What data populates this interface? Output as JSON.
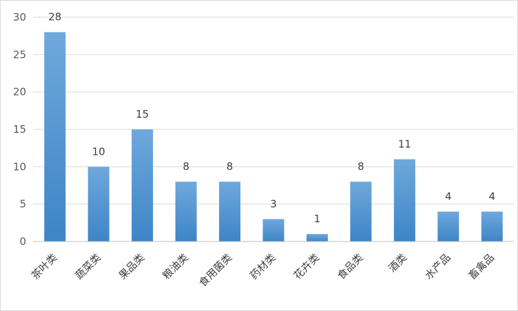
{
  "chart_data": {
    "type": "bar",
    "categories": [
      "茶叶类",
      "蔬菜类",
      "果品类",
      "粮油类",
      "食用菌类",
      "药材类",
      "花卉类",
      "食品类",
      "酒类",
      "水产品",
      "畜禽品"
    ],
    "values": [
      28,
      10,
      15,
      8,
      8,
      3,
      1,
      8,
      11,
      4,
      4
    ],
    "data_labels": [
      "28",
      "10",
      "15",
      "8",
      "8",
      "3",
      "1",
      "8",
      "11",
      "4",
      "4"
    ],
    "title": "",
    "xlabel": "",
    "ylabel": "",
    "ylim": [
      0,
      30
    ],
    "yticks": [
      "0",
      "5",
      "10",
      "15",
      "20",
      "25",
      "30"
    ],
    "grid": true,
    "legend": "none",
    "bar_color_top": "#6fa8dc",
    "bar_color_bottom": "#3d85c6"
  }
}
